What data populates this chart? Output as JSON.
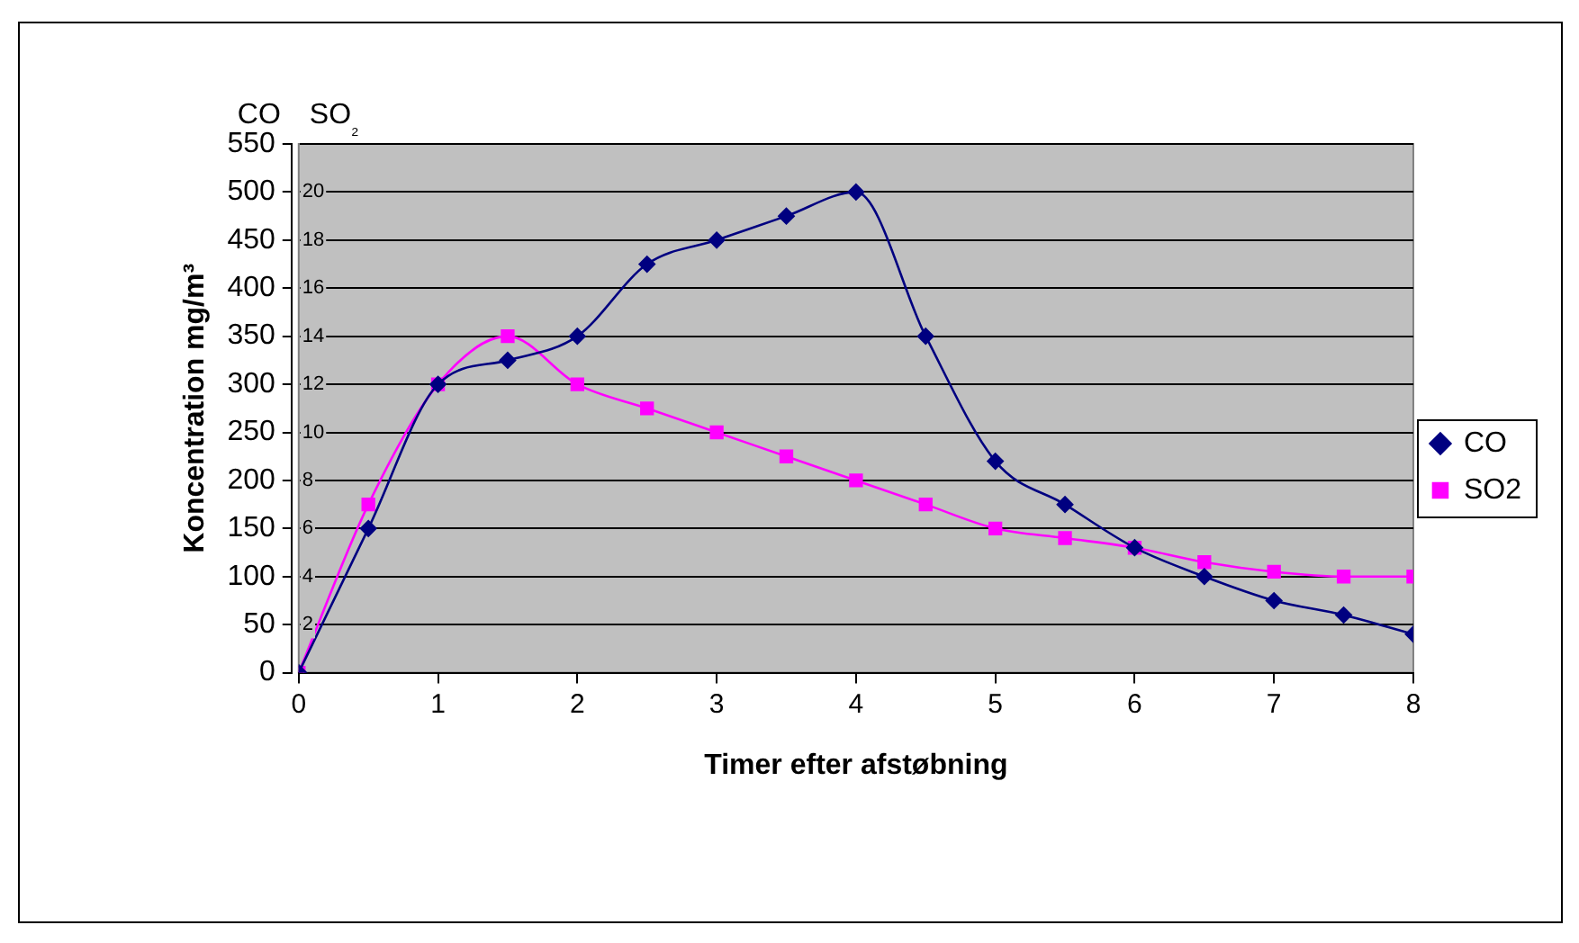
{
  "chart_data": {
    "type": "line",
    "xlabel": "Timer efter afstøbning",
    "ylabel": "Koncentration mg/m³",
    "y2label": "SO₂",
    "annotations": [
      "CO"
    ],
    "x": [
      0,
      0.5,
      1,
      1.5,
      2,
      2.5,
      3,
      3.5,
      4,
      4.5,
      5,
      5.5,
      6,
      6.5,
      7,
      7.5,
      8
    ],
    "xlim": [
      0,
      8
    ],
    "xticks": [
      0,
      1,
      2,
      3,
      4,
      5,
      6,
      7,
      8
    ],
    "ylim": [
      0,
      550
    ],
    "yticks": [
      0,
      50,
      100,
      150,
      200,
      250,
      300,
      350,
      400,
      450,
      500,
      550
    ],
    "y2lim": [
      0,
      22
    ],
    "y2ticks": [
      2,
      4,
      6,
      8,
      10,
      12,
      14,
      16,
      18,
      20
    ],
    "series": [
      {
        "name": "CO",
        "color": "#000080",
        "marker": "diamond",
        "values": [
          0,
          150,
          300,
          325,
          350,
          425,
          450,
          475,
          500,
          350,
          220,
          175,
          130,
          100,
          75,
          60,
          40
        ]
      },
      {
        "name": "SO2",
        "color": "#ff00ff",
        "marker": "square",
        "axis": "y2",
        "values": [
          0,
          7,
          12,
          14,
          12,
          11,
          10,
          9,
          8,
          7,
          6,
          5.6,
          5.2,
          4.6,
          4.2,
          4,
          4
        ]
      }
    ],
    "grid": "y",
    "legend": "right"
  }
}
